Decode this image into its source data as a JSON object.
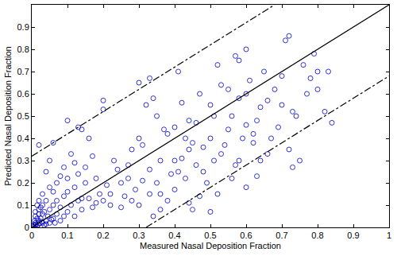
{
  "chart_data": {
    "type": "scatter",
    "x_label": "Measured Nasal Deposition Fraction",
    "y_label": "Predicted Nasal Deposition Fraction",
    "xlim": [
      0,
      1
    ],
    "ylim": [
      0,
      1
    ],
    "xticks": [
      0,
      0.1,
      0.2,
      0.3,
      0.4,
      0.5,
      0.6,
      0.7,
      0.8,
      0.9,
      1
    ],
    "yticks": [
      0,
      0.1,
      0.2,
      0.3,
      0.4,
      0.5,
      0.6,
      0.7,
      0.8,
      0.9,
      1
    ],
    "grid": false,
    "series": [
      {
        "type": "scatter",
        "marker": "circle-open",
        "color": "#0000cc",
        "x": [
          0.005,
          0.01,
          0.015,
          0.02,
          0.01,
          0.02,
          0.03,
          0.025,
          0.03,
          0.035,
          0.04,
          0.045,
          0.05,
          0.05,
          0.06,
          0.06,
          0.07,
          0.07,
          0.08,
          0.08,
          0.09,
          0.09,
          0.1,
          0.1,
          0.11,
          0.12,
          0.12,
          0.13,
          0.14,
          0.15,
          0.01,
          0.012,
          0.018,
          0.022,
          0.028,
          0.008,
          0.015,
          0.02,
          0.03,
          0.04,
          0.035,
          0.015,
          0.02,
          0.01,
          0.025,
          0.005,
          0.002,
          0.04,
          0.055,
          0.065,
          0.02,
          0.06,
          0.04,
          0.05,
          0.1,
          0.13,
          0.14,
          0.11,
          0.16,
          0.2,
          0.2,
          0.17,
          0.12,
          0.07,
          0.08,
          0.09,
          0.15,
          0.18,
          0.03,
          0.05,
          0.06,
          0.1,
          0.13,
          0.22,
          0.2,
          0.18,
          0.25,
          0.24,
          0.23,
          0.27,
          0.28,
          0.3,
          0.33,
          0.32,
          0.34,
          0.35,
          0.3,
          0.31,
          0.29,
          0.26,
          0.3,
          0.33,
          0.35,
          0.36,
          0.38,
          0.4,
          0.41,
          0.42,
          0.44,
          0.45,
          0.43,
          0.4,
          0.38,
          0.36,
          0.34,
          0.4,
          0.42,
          0.46,
          0.48,
          0.5,
          0.52,
          0.55,
          0.5,
          0.51,
          0.53,
          0.49,
          0.47,
          0.45,
          0.5,
          0.52,
          0.55,
          0.56,
          0.57,
          0.58,
          0.6,
          0.58,
          0.6,
          0.6,
          0.62,
          0.63,
          0.6,
          0.58,
          0.65,
          0.64,
          0.66,
          0.68,
          0.67,
          0.66,
          0.7,
          0.71,
          0.72,
          0.73,
          0.74,
          0.73,
          0.76,
          0.77,
          0.78,
          0.79,
          0.8,
          0.8,
          0.82,
          0.83,
          0.84,
          0.75,
          0.72,
          0.69,
          0.62,
          0.64,
          0.57,
          0.54,
          0.46,
          0.43,
          0.39,
          0.37,
          0.27,
          0.21,
          0.19,
          0.16,
          0.17,
          0.14,
          0.22,
          0.25,
          0.28,
          0.31,
          0.33,
          0.36,
          0.44,
          0.48,
          0.51,
          0.56,
          0.59,
          0.63,
          0.7,
          0.61,
          0.53,
          0.47,
          0.44,
          0.41
        ],
        "values": [
          0.01,
          0.02,
          0.005,
          0.03,
          0.05,
          0.08,
          0.02,
          0.04,
          0.06,
          0.01,
          0.03,
          0.05,
          0.02,
          0.08,
          0.04,
          0.1,
          0.06,
          0.12,
          0.03,
          0.09,
          0.05,
          0.14,
          0.07,
          0.16,
          0.1,
          0.05,
          0.18,
          0.12,
          0.08,
          0.2,
          0.01,
          0.015,
          0.012,
          0.018,
          0.025,
          0.03,
          0.04,
          0.06,
          0.1,
          0.12,
          0.07,
          0.1,
          0.12,
          0.07,
          0.09,
          0.002,
          0.005,
          0.015,
          0.035,
          0.02,
          0.37,
          0.38,
          0.25,
          0.3,
          0.48,
          0.45,
          0.44,
          0.33,
          0.4,
          0.57,
          0.53,
          0.32,
          0.29,
          0.2,
          0.23,
          0.27,
          0.27,
          0.22,
          0.15,
          0.18,
          0.16,
          0.22,
          0.24,
          0.15,
          0.12,
          0.11,
          0.2,
          0.26,
          0.3,
          0.28,
          0.35,
          0.65,
          0.67,
          0.55,
          0.58,
          0.5,
          0.4,
          0.37,
          0.17,
          0.14,
          0.1,
          0.15,
          0.2,
          0.3,
          0.42,
          0.45,
          0.7,
          0.56,
          0.48,
          0.38,
          0.22,
          0.17,
          0.12,
          0.08,
          0.05,
          0.3,
          0.31,
          0.47,
          0.36,
          0.4,
          0.73,
          0.62,
          0.55,
          0.5,
          0.33,
          0.2,
          0.14,
          0.08,
          0.07,
          0.15,
          0.44,
          0.5,
          0.77,
          0.75,
          0.8,
          0.58,
          0.6,
          0.46,
          0.38,
          0.23,
          0.18,
          0.3,
          0.7,
          0.54,
          0.57,
          0.62,
          0.4,
          0.33,
          0.55,
          0.84,
          0.86,
          0.52,
          0.5,
          0.27,
          0.73,
          0.6,
          0.67,
          0.78,
          0.7,
          0.62,
          0.52,
          0.7,
          0.47,
          0.3,
          0.35,
          0.45,
          0.42,
          0.3,
          0.28,
          0.37,
          0.28,
          0.4,
          0.24,
          0.44,
          0.22,
          0.19,
          0.15,
          0.13,
          0.09,
          0.13,
          0.1,
          0.09,
          0.12,
          0.21,
          0.26,
          0.15,
          0.11,
          0.25,
          0.3,
          0.22,
          0.4,
          0.48,
          0.68,
          0.66,
          0.64,
          0.6,
          0.35,
          0.25
        ]
      },
      {
        "type": "line",
        "line_style": "solid",
        "color": "#000000",
        "x": [
          0,
          1
        ],
        "values": [
          0,
          1
        ]
      },
      {
        "type": "line",
        "line_style": "dashdot",
        "color": "#000000",
        "x": [
          0,
          0.68
        ],
        "values": [
          0.32,
          1
        ]
      },
      {
        "type": "line",
        "line_style": "dashdot",
        "color": "#000000",
        "x": [
          0.32,
          1
        ],
        "values": [
          0,
          0.68
        ]
      }
    ]
  }
}
